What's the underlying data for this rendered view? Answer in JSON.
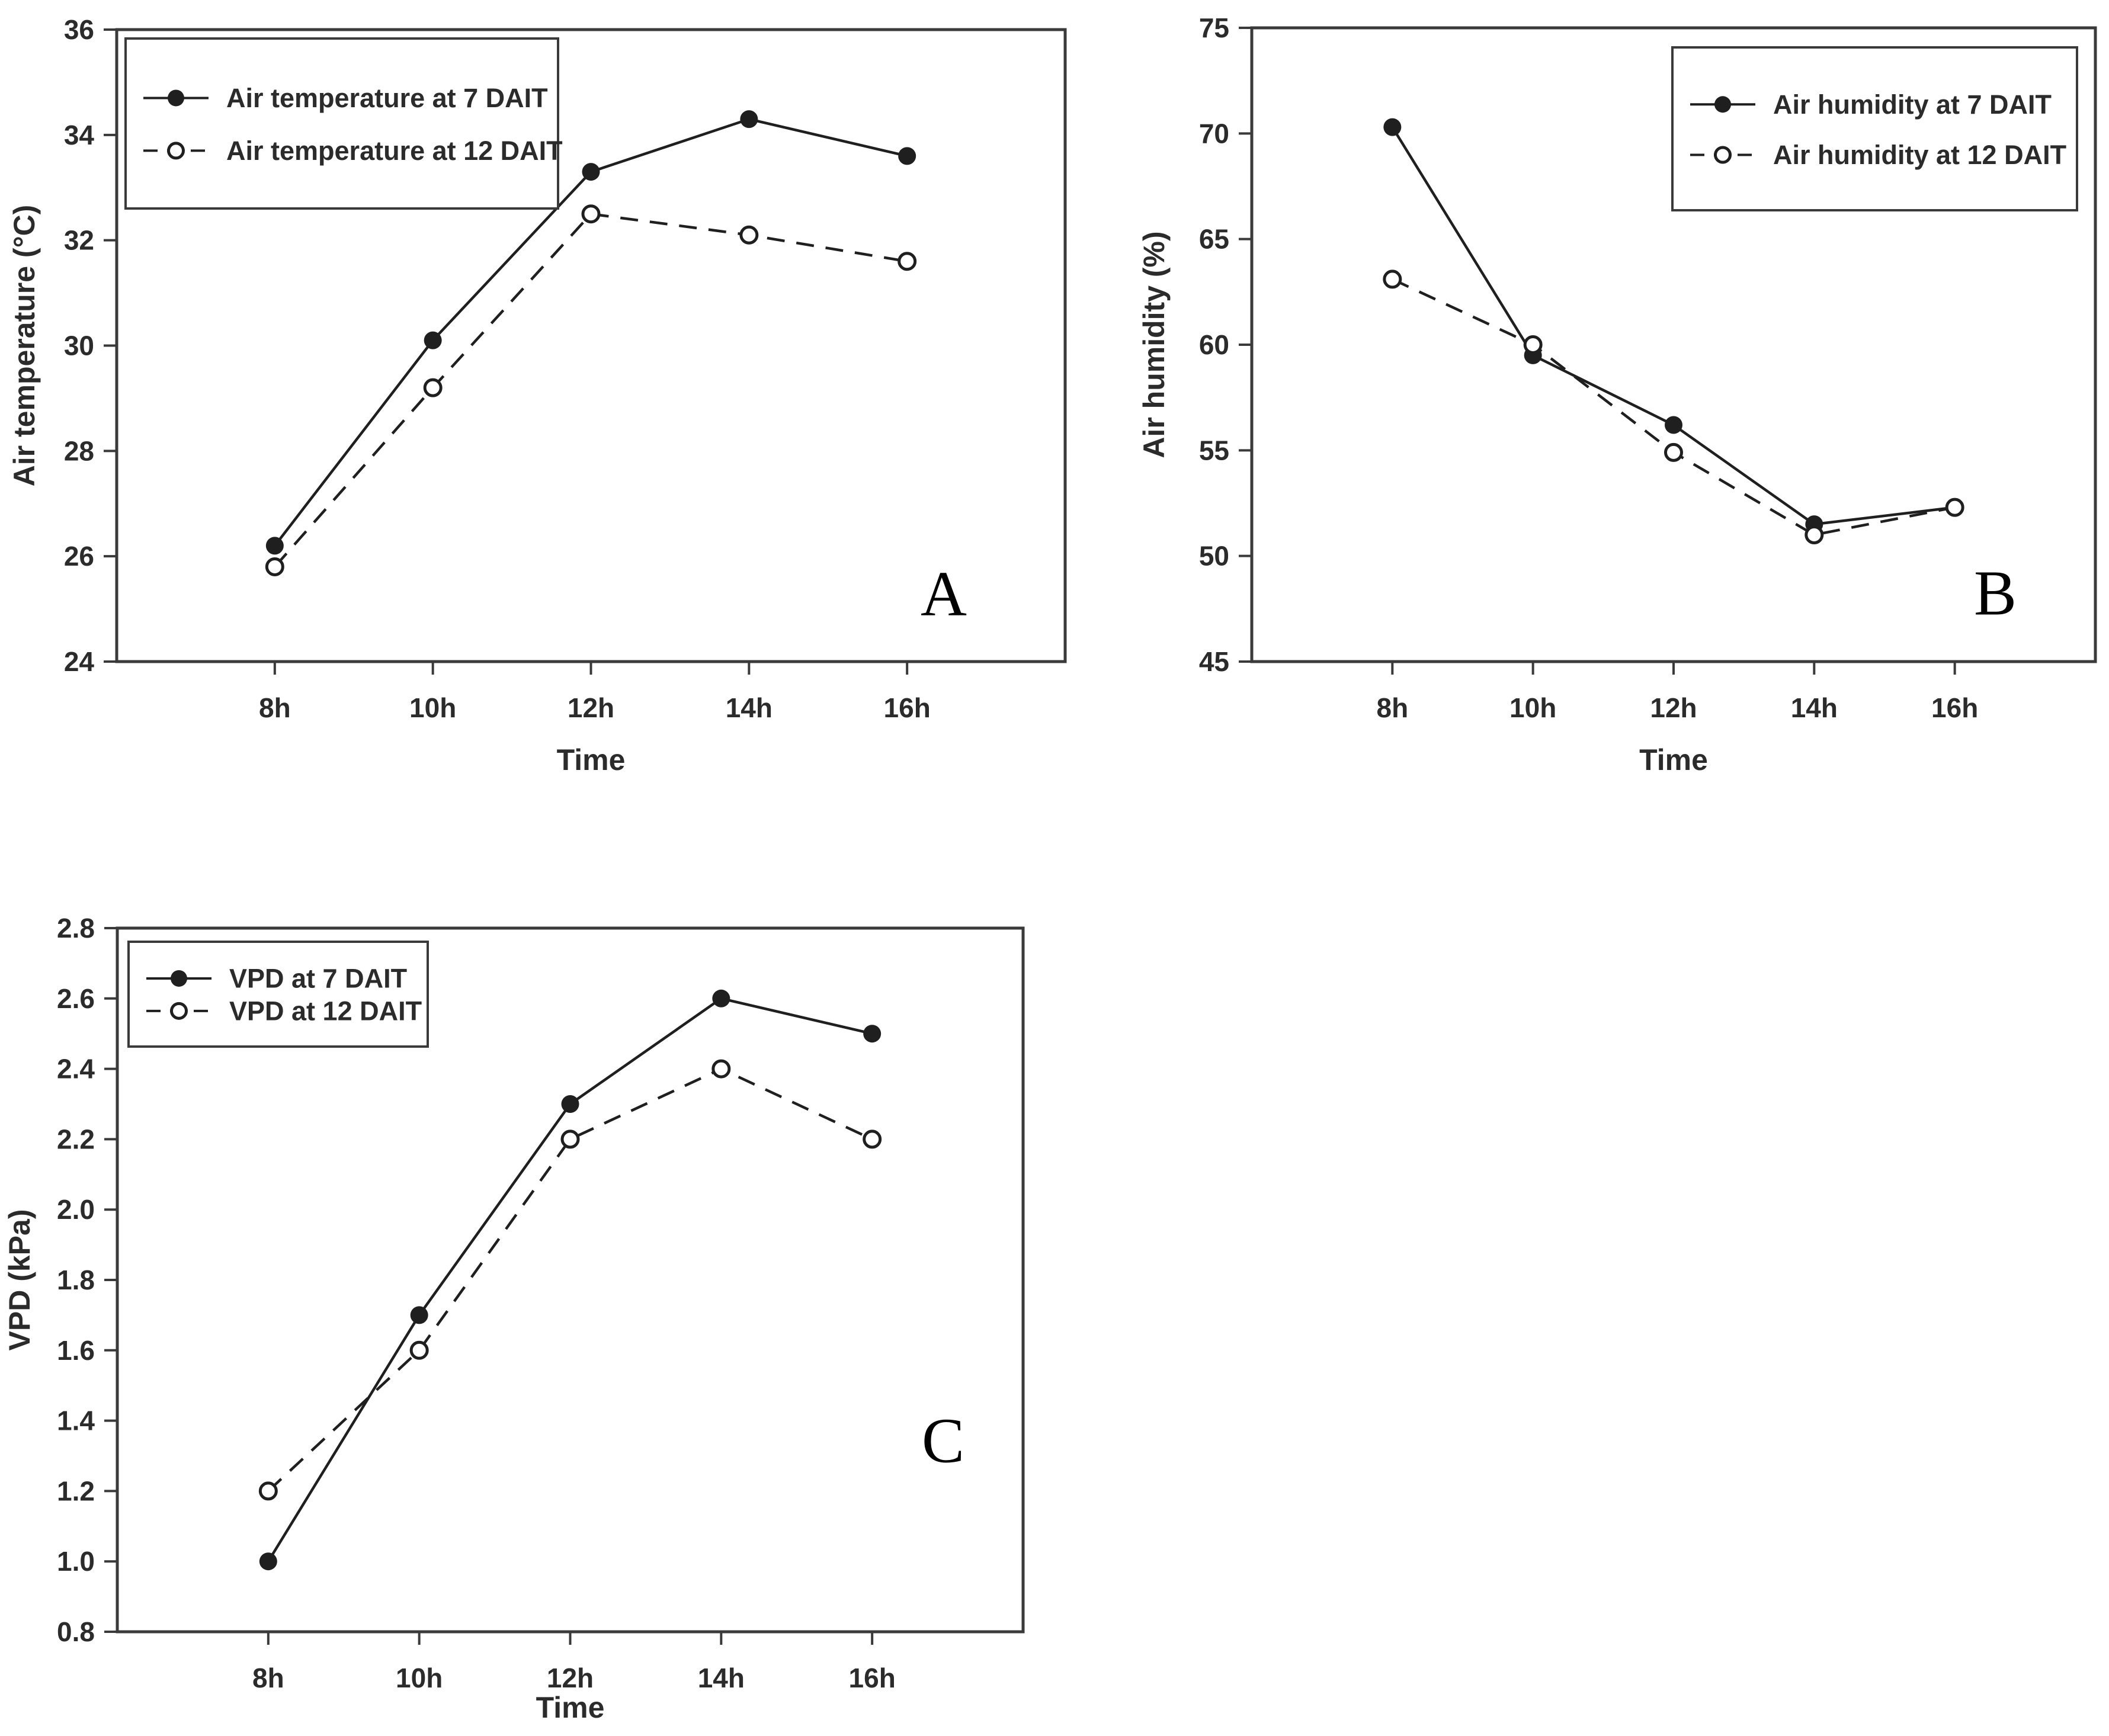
{
  "figure": {
    "background": "#ffffff",
    "text_color": "#2b2b2b",
    "line_color": "#1f1f1f",
    "frame_color": "#3a3a3a"
  },
  "chart_data": [
    {
      "id": "air-temperature",
      "type": "line",
      "panel_label": "A",
      "xlabel": "Time",
      "ylabel": "Air temperature (°C)",
      "categories": [
        "8h",
        "10h",
        "12h",
        "14h",
        "16h"
      ],
      "ylim": [
        24,
        36
      ],
      "ytick_step": 2,
      "ytick_decimals": 0,
      "grid": false,
      "legend_position": "top-left",
      "series": [
        {
          "name": "Air temperature at 7 DAIT",
          "marker": "filled-circle",
          "line_style": "solid",
          "values": [
            26.2,
            30.1,
            33.3,
            34.3,
            33.6
          ]
        },
        {
          "name": "Air temperature at 12 DAIT",
          "marker": "open-circle",
          "line_style": "dashed",
          "values": [
            25.8,
            29.2,
            32.5,
            32.1,
            31.6
          ]
        }
      ]
    },
    {
      "id": "air-humidity",
      "type": "line",
      "panel_label": "B",
      "xlabel": "Time",
      "ylabel": "Air humidity (%)",
      "categories": [
        "8h",
        "10h",
        "12h",
        "14h",
        "16h"
      ],
      "ylim": [
        45,
        75
      ],
      "ytick_step": 5,
      "ytick_decimals": 0,
      "grid": false,
      "legend_position": "top-right",
      "series": [
        {
          "name": "Air humidity at 7 DAIT",
          "marker": "filled-circle",
          "line_style": "solid",
          "values": [
            70.3,
            59.5,
            56.2,
            51.5,
            52.3
          ]
        },
        {
          "name": "Air humidity at 12 DAIT",
          "marker": "open-circle",
          "line_style": "dashed",
          "values": [
            63.1,
            60.0,
            54.9,
            51.0,
            52.3
          ]
        }
      ]
    },
    {
      "id": "vpd",
      "type": "line",
      "panel_label": "C",
      "xlabel": "Time",
      "ylabel": "VPD (kPa)",
      "categories": [
        "8h",
        "10h",
        "12h",
        "14h",
        "16h"
      ],
      "ylim": [
        0.8,
        2.8
      ],
      "ytick_step": 0.2,
      "ytick_decimals": 1,
      "grid": false,
      "legend_position": "top-left",
      "series": [
        {
          "name": "VPD at 7 DAIT",
          "marker": "filled-circle",
          "line_style": "solid",
          "values": [
            1.0,
            1.7,
            2.3,
            2.6,
            2.5
          ]
        },
        {
          "name": "VPD at 12 DAIT",
          "marker": "open-circle",
          "line_style": "dashed",
          "values": [
            1.2,
            1.6,
            2.2,
            2.4,
            2.2
          ]
        }
      ]
    }
  ]
}
